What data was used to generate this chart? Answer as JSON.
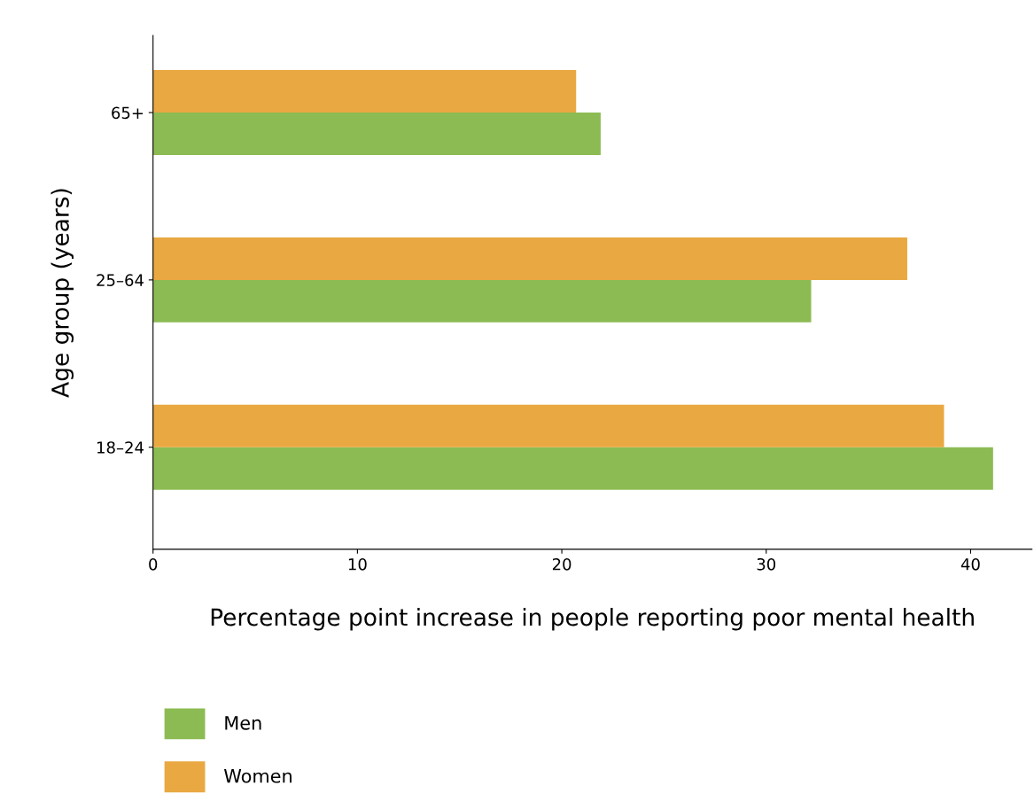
{
  "chart_data": {
    "type": "bar",
    "orientation": "horizontal",
    "categories": [
      "65+",
      "25–64",
      "18–24"
    ],
    "series": [
      {
        "name": "Men",
        "color": "#8cbb53",
        "values": [
          21.9,
          32.2,
          41.1
        ]
      },
      {
        "name": "Women",
        "color": "#e9a841",
        "values": [
          20.7,
          36.9,
          38.7
        ]
      }
    ],
    "xlabel": "Percentage point increase in people reporting poor mental health",
    "ylabel": "Age group (years)",
    "xlim": [
      0,
      43
    ],
    "xticks": [
      0,
      10,
      20,
      30,
      40
    ],
    "grid": false,
    "legend": "bottom left"
  }
}
